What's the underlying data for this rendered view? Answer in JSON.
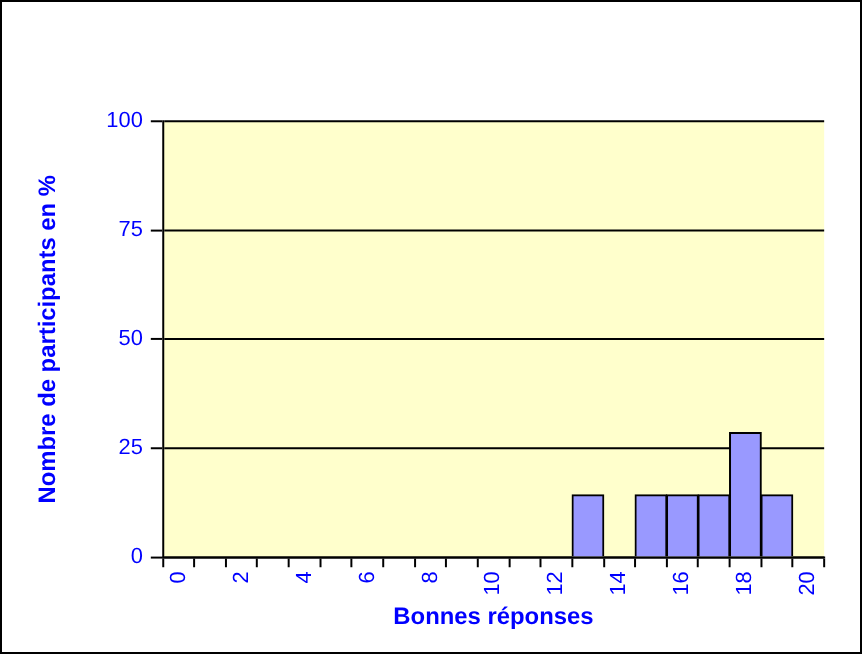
{
  "chart_data": {
    "type": "bar",
    "xlabel": "Bonnes réponses",
    "ylabel": "Nombre de participants en %",
    "categories": [
      "0",
      null,
      "2",
      null,
      "4",
      null,
      "6",
      null,
      "8",
      null,
      "10",
      null,
      "12",
      null,
      "14",
      null,
      "16",
      null,
      "18",
      null,
      "20"
    ],
    "values": [
      0,
      0,
      0,
      0,
      0,
      0,
      0,
      0,
      0,
      0,
      0,
      0,
      0,
      14.3,
      0,
      14.3,
      14.3,
      14.3,
      28.6,
      14.3,
      0
    ],
    "color": "#9999ff",
    "ylim": [
      0,
      100
    ],
    "yticks": [
      0,
      25,
      50,
      75,
      100
    ],
    "grid": "y",
    "legend": false
  }
}
